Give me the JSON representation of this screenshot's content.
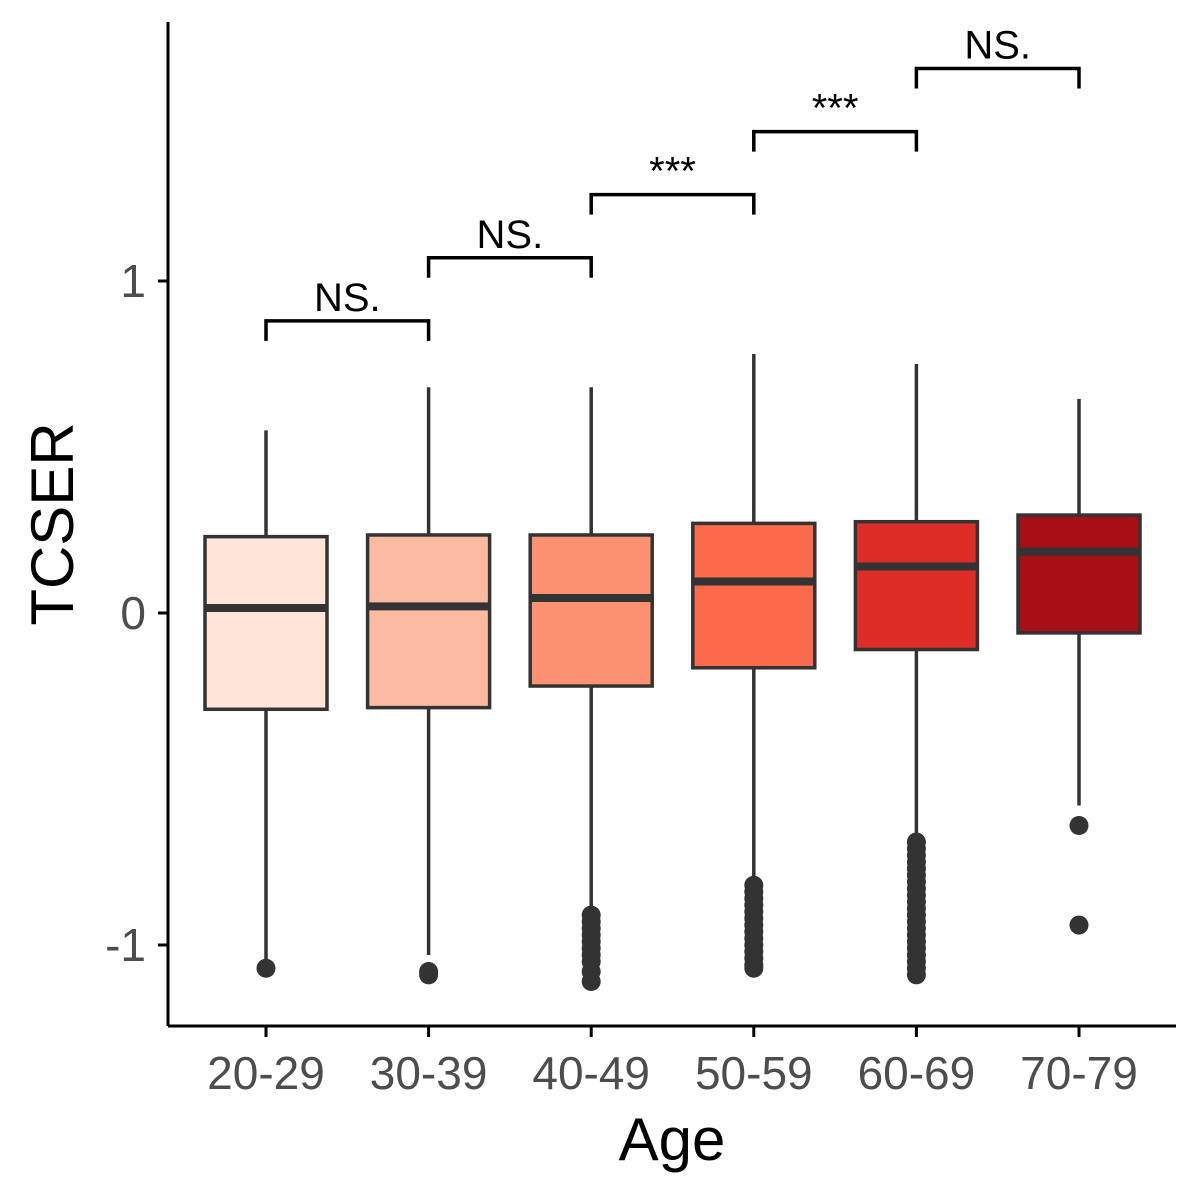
{
  "chart_data": {
    "type": "box",
    "xlabel": "Age",
    "ylabel": "TCSER",
    "ylim": [
      -1.25,
      1.8
    ],
    "yticks": [
      "-1",
      "0",
      "1"
    ],
    "categories": [
      "20-29",
      "30-39",
      "40-49",
      "50-59",
      "60-69",
      "70-79"
    ],
    "boxes": [
      {
        "category": "20-29",
        "fill": "#FFE4DA",
        "whisker_low": -1.05,
        "q1": -0.29,
        "median": 0.015,
        "q3": 0.23,
        "whisker_high": 0.55,
        "outliers": [
          -1.07
        ]
      },
      {
        "category": "30-39",
        "fill": "#FCBBA1",
        "whisker_low": -1.03,
        "q1": -0.285,
        "median": 0.02,
        "q3": 0.235,
        "whisker_high": 0.68,
        "outliers": [
          -1.08,
          -1.09
        ]
      },
      {
        "category": "40-49",
        "fill": "#FC9272",
        "whisker_low": -0.89,
        "q1": -0.22,
        "median": 0.045,
        "q3": 0.235,
        "whisker_high": 0.68,
        "outliers": [
          -0.91,
          -0.93,
          -0.95,
          -0.97,
          -0.99,
          -1.01,
          -1.03,
          -1.05,
          -1.08,
          -1.11
        ]
      },
      {
        "category": "50-59",
        "fill": "#FB6A4A",
        "whisker_low": -0.81,
        "q1": -0.165,
        "median": 0.095,
        "q3": 0.27,
        "whisker_high": 0.78,
        "outliers": [
          -0.82,
          -0.84,
          -0.86,
          -0.88,
          -0.9,
          -0.92,
          -0.94,
          -0.96,
          -0.98,
          -1.0,
          -1.02,
          -1.04,
          -1.06,
          -1.07
        ]
      },
      {
        "category": "60-69",
        "fill": "#DE2D26",
        "whisker_low": -0.68,
        "q1": -0.11,
        "median": 0.14,
        "q3": 0.275,
        "whisker_high": 0.75,
        "outliers": [
          -0.69,
          -0.71,
          -0.73,
          -0.75,
          -0.77,
          -0.79,
          -0.81,
          -0.83,
          -0.85,
          -0.87,
          -0.89,
          -0.91,
          -0.93,
          -0.95,
          -0.97,
          -0.99,
          -1.01,
          -1.03,
          -1.05,
          -1.07,
          -1.09
        ]
      },
      {
        "category": "70-79",
        "fill": "#A50F15",
        "whisker_low": -0.58,
        "q1": -0.06,
        "median": 0.185,
        "q3": 0.295,
        "whisker_high": 0.645,
        "outliers": [
          -0.64,
          -0.94
        ]
      }
    ],
    "significance": [
      {
        "from": "20-29",
        "to": "30-39",
        "label": "NS.",
        "y": 0.88
      },
      {
        "from": "30-39",
        "to": "40-49",
        "label": "NS.",
        "y": 1.07
      },
      {
        "from": "40-49",
        "to": "50-59",
        "label": "***",
        "y": 1.26
      },
      {
        "from": "50-59",
        "to": "60-69",
        "label": "***",
        "y": 1.45
      },
      {
        "from": "60-69",
        "to": "70-79",
        "label": "NS.",
        "y": 1.64
      }
    ],
    "grid": false,
    "legend": "none"
  }
}
